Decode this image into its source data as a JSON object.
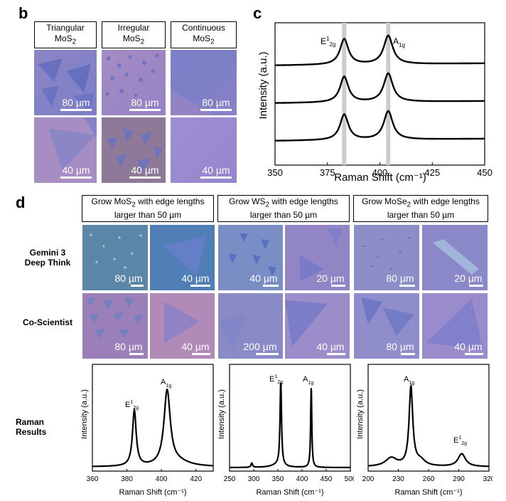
{
  "panel_b": {
    "letter": "b",
    "headers": [
      {
        "line1": "Triangular",
        "line2": "MoS",
        "sub": "2"
      },
      {
        "line1": "Irregular",
        "line2": "MoS",
        "sub": "2"
      },
      {
        "line1": "Continuous",
        "line2": "MoS",
        "sub": "2"
      }
    ],
    "scale_labels": [
      "80 µm",
      "80 µm",
      "80 µm",
      "40 µm",
      "40 µm",
      "40 µm"
    ],
    "colors": {
      "blue": "#6f78c4",
      "pink": "#a98cc2",
      "purple": "#9b8ad0"
    }
  },
  "panel_c": {
    "letter": "c",
    "chart_data": {
      "type": "line",
      "xlabel": "Raman Shift (cm⁻¹)",
      "ylabel": "Intensity (a.u.)",
      "xlim": [
        350,
        450
      ],
      "x_ticks": [
        "350",
        "375",
        "400",
        "425",
        "450"
      ],
      "peaks": [
        {
          "label": "E",
          "sup": "1",
          "sub": "2g",
          "position": 383
        },
        {
          "label": "A",
          "sub": "1g",
          "position": 404
        }
      ],
      "series_count": 3,
      "highlight_bands": [
        383,
        404
      ]
    }
  },
  "panel_d": {
    "letter": "d",
    "headers": [
      {
        "pre": "Grow MoS",
        "sub": "2",
        "post": " with edge lengths",
        "line2": "larger than 50 µm"
      },
      {
        "pre": "Grow WS",
        "sub": "2",
        "post": " with edge lengths",
        "line2": "larger than 50 µm"
      },
      {
        "pre": "Grow MoSe",
        "sub": "2",
        "post": " with edge lengths",
        "line2": "larger than 50 µm"
      }
    ],
    "row_labels": {
      "gemini": [
        "Gemini 3",
        "Deep Think"
      ],
      "coscientist": "Co-Scientist",
      "raman": [
        "Raman",
        "Results"
      ]
    },
    "gemini_scales": [
      "80 µm",
      "40 µm",
      "40 µm",
      "20 µm",
      "80 µm",
      "20 µm"
    ],
    "cosci_scales": [
      "80 µm",
      "40 µm",
      "200 µm",
      "40 µm",
      "80 µm",
      "40 µm"
    ],
    "raman_charts": [
      {
        "type": "line",
        "xlabel": "Raman Shift (cm⁻¹)",
        "ylabel": "Intensity (a.u.)",
        "xlim": [
          360,
          430
        ],
        "x_ticks": [
          "360",
          "380",
          "400",
          "420"
        ],
        "peaks": [
          {
            "label": "E",
            "sup": "1",
            "sub": "2g",
            "position": 384
          },
          {
            "label": "A",
            "sub": "1g",
            "position": 403
          }
        ]
      },
      {
        "type": "line",
        "xlabel": "Raman Shift (cm⁻¹)",
        "ylabel": "Intensity (a.u.)",
        "xlim": [
          250,
          500
        ],
        "x_ticks": [
          "250",
          "300",
          "350",
          "400",
          "450",
          "500"
        ],
        "peaks": [
          {
            "label": "E",
            "sup": "1",
            "sub": "2g",
            "position": 356
          },
          {
            "label": "A",
            "sub": "1g",
            "position": 419
          }
        ]
      },
      {
        "type": "line",
        "xlabel": "Raman Shift (cm⁻¹)",
        "ylabel": "Intensity (a.u.)",
        "xlim": [
          200,
          320
        ],
        "x_ticks": [
          "200",
          "230",
          "260",
          "290",
          "320"
        ],
        "peaks": [
          {
            "label": "A",
            "sub": "1g",
            "position": 242
          },
          {
            "label": "E",
            "sup": "1",
            "sub": "2g",
            "position": 293
          }
        ]
      }
    ]
  }
}
